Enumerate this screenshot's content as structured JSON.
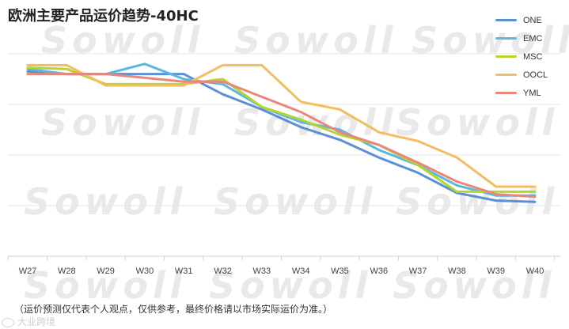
{
  "title": "欧洲主要产品运价趋势-40HC",
  "footnote": "（运价预测仅代表个人观点，仅供参考，最终价格请以市场实际运价为准。）",
  "watermark": "Sowoll",
  "logo_text": "大业跨境",
  "chart_data": {
    "type": "line",
    "title": "欧洲主要产品运价趋势-40HC",
    "xlabel": "",
    "ylabel": "",
    "ylim": [
      0,
      100
    ],
    "grid": true,
    "legend_position": "top-right",
    "categories": [
      "W27",
      "W28",
      "W29",
      "W30",
      "W31",
      "W32",
      "W33",
      "W34",
      "W35",
      "W36",
      "W37",
      "W38",
      "W39",
      "W40"
    ],
    "series": [
      {
        "name": "ONE",
        "color": "#5B8FD6",
        "values": [
          73,
          72,
          72,
          72,
          72,
          64,
          58,
          51,
          46,
          39,
          33,
          25,
          22,
          21.5
        ]
      },
      {
        "name": "EMC",
        "color": "#5BB6E4",
        "values": [
          74,
          72,
          72,
          76,
          70,
          68,
          59,
          53,
          50,
          42,
          36,
          28,
          24,
          24
        ]
      },
      {
        "name": "MSC",
        "color": "#B5D531",
        "values": [
          74.5,
          74,
          68,
          68,
          68,
          70,
          59,
          54,
          48,
          44,
          36,
          25.5,
          25.5,
          25.5
        ]
      },
      {
        "name": "OOCL",
        "color": "#F2BE5E",
        "values": [
          75.5,
          75.5,
          67.5,
          67.5,
          67.5,
          75.5,
          75.5,
          61,
          58,
          49,
          45.5,
          39,
          27.5,
          27.5
        ]
      },
      {
        "name": "YML",
        "color": "#E8877A",
        "values": [
          72,
          72,
          72,
          70.5,
          69,
          69,
          63,
          57,
          49,
          44,
          37,
          29.5,
          24.5,
          23.5
        ]
      }
    ]
  }
}
